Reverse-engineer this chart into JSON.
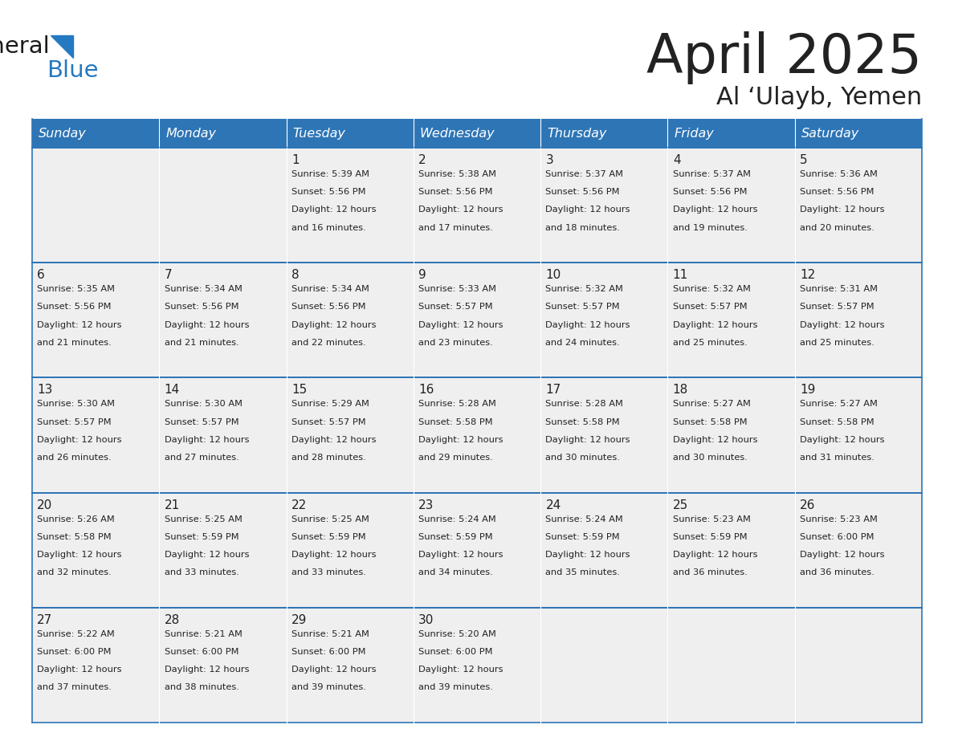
{
  "title": "April 2025",
  "subtitle": "Al ‘Ulayb, Yemen",
  "header_color": "#2E75B6",
  "header_text_color": "#FFFFFF",
  "cell_bg_color": "#EFEFEF",
  "border_color": "#2E75B6",
  "text_color": "#222222",
  "days_of_week": [
    "Sunday",
    "Monday",
    "Tuesday",
    "Wednesday",
    "Thursday",
    "Friday",
    "Saturday"
  ],
  "weeks": [
    [
      {
        "day": "",
        "sunrise": "",
        "sunset": "",
        "daylight": ""
      },
      {
        "day": "",
        "sunrise": "",
        "sunset": "",
        "daylight": ""
      },
      {
        "day": "1",
        "sunrise": "5:39 AM",
        "sunset": "5:56 PM",
        "daylight": "and 16 minutes."
      },
      {
        "day": "2",
        "sunrise": "5:38 AM",
        "sunset": "5:56 PM",
        "daylight": "and 17 minutes."
      },
      {
        "day": "3",
        "sunrise": "5:37 AM",
        "sunset": "5:56 PM",
        "daylight": "and 18 minutes."
      },
      {
        "day": "4",
        "sunrise": "5:37 AM",
        "sunset": "5:56 PM",
        "daylight": "and 19 minutes."
      },
      {
        "day": "5",
        "sunrise": "5:36 AM",
        "sunset": "5:56 PM",
        "daylight": "and 20 minutes."
      }
    ],
    [
      {
        "day": "6",
        "sunrise": "5:35 AM",
        "sunset": "5:56 PM",
        "daylight": "and 21 minutes."
      },
      {
        "day": "7",
        "sunrise": "5:34 AM",
        "sunset": "5:56 PM",
        "daylight": "and 21 minutes."
      },
      {
        "day": "8",
        "sunrise": "5:34 AM",
        "sunset": "5:56 PM",
        "daylight": "and 22 minutes."
      },
      {
        "day": "9",
        "sunrise": "5:33 AM",
        "sunset": "5:57 PM",
        "daylight": "and 23 minutes."
      },
      {
        "day": "10",
        "sunrise": "5:32 AM",
        "sunset": "5:57 PM",
        "daylight": "and 24 minutes."
      },
      {
        "day": "11",
        "sunrise": "5:32 AM",
        "sunset": "5:57 PM",
        "daylight": "and 25 minutes."
      },
      {
        "day": "12",
        "sunrise": "5:31 AM",
        "sunset": "5:57 PM",
        "daylight": "and 25 minutes."
      }
    ],
    [
      {
        "day": "13",
        "sunrise": "5:30 AM",
        "sunset": "5:57 PM",
        "daylight": "and 26 minutes."
      },
      {
        "day": "14",
        "sunrise": "5:30 AM",
        "sunset": "5:57 PM",
        "daylight": "and 27 minutes."
      },
      {
        "day": "15",
        "sunrise": "5:29 AM",
        "sunset": "5:57 PM",
        "daylight": "and 28 minutes."
      },
      {
        "day": "16",
        "sunrise": "5:28 AM",
        "sunset": "5:58 PM",
        "daylight": "and 29 minutes."
      },
      {
        "day": "17",
        "sunrise": "5:28 AM",
        "sunset": "5:58 PM",
        "daylight": "and 30 minutes."
      },
      {
        "day": "18",
        "sunrise": "5:27 AM",
        "sunset": "5:58 PM",
        "daylight": "and 30 minutes."
      },
      {
        "day": "19",
        "sunrise": "5:27 AM",
        "sunset": "5:58 PM",
        "daylight": "and 31 minutes."
      }
    ],
    [
      {
        "day": "20",
        "sunrise": "5:26 AM",
        "sunset": "5:58 PM",
        "daylight": "and 32 minutes."
      },
      {
        "day": "21",
        "sunrise": "5:25 AM",
        "sunset": "5:59 PM",
        "daylight": "and 33 minutes."
      },
      {
        "day": "22",
        "sunrise": "5:25 AM",
        "sunset": "5:59 PM",
        "daylight": "and 33 minutes."
      },
      {
        "day": "23",
        "sunrise": "5:24 AM",
        "sunset": "5:59 PM",
        "daylight": "and 34 minutes."
      },
      {
        "day": "24",
        "sunrise": "5:24 AM",
        "sunset": "5:59 PM",
        "daylight": "and 35 minutes."
      },
      {
        "day": "25",
        "sunrise": "5:23 AM",
        "sunset": "5:59 PM",
        "daylight": "and 36 minutes."
      },
      {
        "day": "26",
        "sunrise": "5:23 AM",
        "sunset": "6:00 PM",
        "daylight": "and 36 minutes."
      }
    ],
    [
      {
        "day": "27",
        "sunrise": "5:22 AM",
        "sunset": "6:00 PM",
        "daylight": "and 37 minutes."
      },
      {
        "day": "28",
        "sunrise": "5:21 AM",
        "sunset": "6:00 PM",
        "daylight": "and 38 minutes."
      },
      {
        "day": "29",
        "sunrise": "5:21 AM",
        "sunset": "6:00 PM",
        "daylight": "and 39 minutes."
      },
      {
        "day": "30",
        "sunrise": "5:20 AM",
        "sunset": "6:00 PM",
        "daylight": "and 39 minutes."
      },
      {
        "day": "",
        "sunrise": "",
        "sunset": "",
        "daylight": ""
      },
      {
        "day": "",
        "sunrise": "",
        "sunset": "",
        "daylight": ""
      },
      {
        "day": "",
        "sunrise": "",
        "sunset": "",
        "daylight": ""
      }
    ]
  ],
  "logo_general_color": "#1a1a1a",
  "logo_blue_color": "#2479C2"
}
